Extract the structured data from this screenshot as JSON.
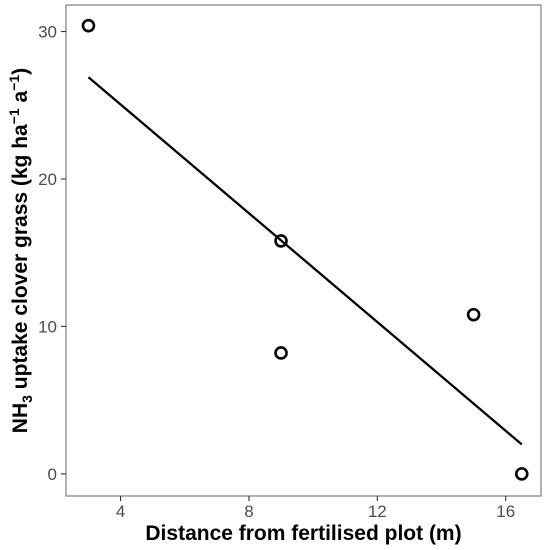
{
  "chart_data": {
    "type": "scatter",
    "xlabel": "Distance from fertilised plot (m)",
    "ylabel": {
      "prefix": "NH",
      "sub": "3",
      "middle": " uptake clover grass (kg ha",
      "sup1": "−1",
      "middle2": " a",
      "sup2": "−1",
      "suffix": ")"
    },
    "xlim": [
      2.3,
      17.1
    ],
    "ylim": [
      -1.5,
      31.8
    ],
    "x_ticks": [
      4,
      8,
      12,
      16
    ],
    "x_tick_labels": [
      "4",
      "8",
      "12",
      "16"
    ],
    "y_ticks": [
      0,
      10,
      20,
      30
    ],
    "y_tick_labels": [
      "0",
      "10",
      "20",
      "30"
    ],
    "grid": false,
    "legend": "none",
    "series": [
      {
        "points": [
          {
            "x": 3.0,
            "y": 30.4
          },
          {
            "x": 9.0,
            "y": 15.8
          },
          {
            "x": 9.0,
            "y": 8.2
          },
          {
            "x": 15.0,
            "y": 10.8
          },
          {
            "x": 16.5,
            "y": 0.0
          }
        ]
      }
    ],
    "trendline": {
      "x": [
        3.0,
        16.5
      ],
      "y": [
        26.9,
        2.0
      ]
    },
    "colors": {
      "points": "#000000",
      "line": "#000000",
      "frame": "#7f7f7f"
    }
  }
}
